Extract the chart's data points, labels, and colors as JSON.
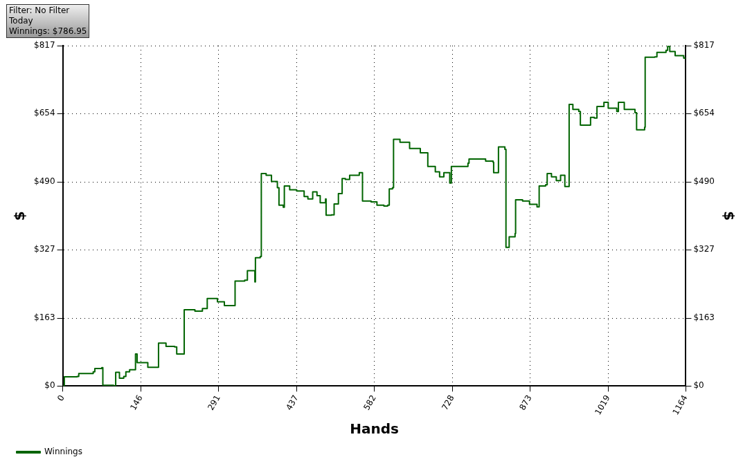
{
  "chart_data": {
    "type": "step",
    "xlabel": "Hands",
    "ylabel": "$",
    "y2label": "$",
    "annotations": [
      "Filter: No Filter",
      "Today",
      "Winnings: $786.95"
    ],
    "xlim": [
      0,
      1164
    ],
    "xticks": [
      0,
      146,
      291,
      437,
      582,
      728,
      873,
      1019,
      1164
    ],
    "ylim": [
      0,
      817
    ],
    "yticks": [
      {
        "value": 0,
        "label": "$0"
      },
      {
        "value": 163,
        "label": "$163"
      },
      {
        "value": 327,
        "label": "$327"
      },
      {
        "value": 490,
        "label": "$490"
      },
      {
        "value": 654,
        "label": "$654"
      },
      {
        "value": 817,
        "label": "$817"
      }
    ],
    "y2lim": [
      0,
      817
    ],
    "y2ticks": [
      {
        "value": 0,
        "label": "$0"
      },
      {
        "value": 163,
        "label": "$163"
      },
      {
        "value": 327,
        "label": "$327"
      },
      {
        "value": 490,
        "label": "$490"
      },
      {
        "value": 654,
        "label": "$654"
      },
      {
        "value": 817,
        "label": "$817"
      }
    ],
    "grid": true,
    "legend": "bottom left",
    "line_style": "solid",
    "marker": "none",
    "series": [
      {
        "name": "Winnings",
        "color": "#006400",
        "x": [
          0,
          3,
          27,
          30,
          57,
          60,
          73,
          75,
          87,
          95,
          99,
          106,
          114,
          118,
          125,
          136,
          139,
          159,
          170,
          179,
          193,
          209,
          213,
          223,
          227,
          247,
          261,
          270,
          289,
          302,
          321,
          322,
          340,
          345,
          356,
          359,
          360,
          369,
          371,
          380,
          390,
          401,
          404,
          412,
          414,
          424,
          437,
          451,
          458,
          467,
          475,
          481,
          491,
          492,
          502,
          507,
          515,
          522,
          528,
          536,
          554,
          560,
          576,
          587,
          600,
          607,
          610,
          616,
          618,
          630,
          648,
          668,
          682,
          696,
          704,
          712,
          723,
          726,
          740,
          757,
          759,
          790,
          804,
          805,
          812,
          814,
          826,
          828,
          834,
          845,
          846,
          859,
          872,
          886,
          890,
          902,
          905,
          913,
          922,
          930,
          937,
          938,
          945,
          946,
          953,
          964,
          967,
          980,
          986,
          993,
          998,
          1008,
          1011,
          1019,
          1035,
          1038,
          1049,
          1069,
          1072,
          1087,
          1088,
          1106,
          1110,
          1127,
          1130,
          1134,
          1144,
          1160,
          1164
        ],
        "values": [
          0,
          22,
          23,
          30,
          34,
          42,
          44,
          2,
          2,
          0,
          33,
          19,
          23,
          34,
          39,
          77,
          56,
          45,
          45,
          103,
          95,
          94,
          77,
          77,
          183,
          180,
          186,
          210,
          202,
          193,
          193,
          252,
          254,
          277,
          277,
          250,
          308,
          311,
          510,
          506,
          491,
          476,
          434,
          429,
          480,
          471,
          468,
          455,
          449,
          466,
          457,
          440,
          449,
          410,
          411,
          437,
          462,
          498,
          496,
          506,
          512,
          444,
          442,
          434,
          432,
          434,
          473,
          476,
          592,
          585,
          570,
          560,
          527,
          514,
          502,
          512,
          487,
          527,
          527,
          535,
          545,
          540,
          537,
          512,
          512,
          574,
          568,
          333,
          358,
          366,
          447,
          444,
          436,
          430,
          480,
          483,
          510,
          502,
          493,
          506,
          506,
          479,
          479,
          676,
          664,
          659,
          626,
          626,
          645,
          643,
          671,
          671,
          681,
          667,
          659,
          681,
          664,
          656,
          615,
          621,
          789,
          790,
          801,
          806,
          815,
          803,
          793,
          787,
          787
        ]
      }
    ]
  }
}
